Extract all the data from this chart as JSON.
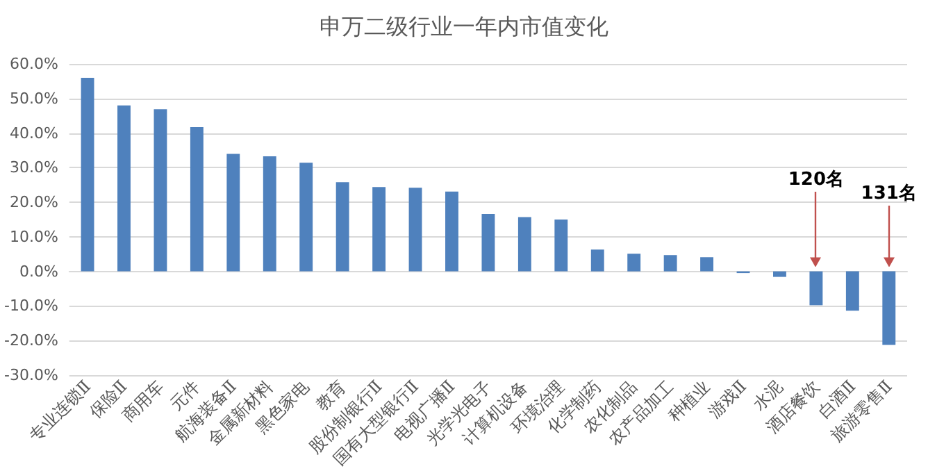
{
  "chart_data": {
    "type": "bar",
    "title": "申万二级行业一年内市值变化",
    "categories": [
      "专业连锁Ⅱ",
      "保险Ⅱ",
      "商用车",
      "元件",
      "航海装备Ⅱ",
      "金属新材料",
      "黑色家电",
      "教育",
      "股份制银行Ⅱ",
      "国有大型银行Ⅱ",
      "电视广播Ⅱ",
      "光学光电子",
      "计算机设备",
      "环境治理",
      "化学制药",
      "农化制品",
      "农产品加工",
      "种植业",
      "游戏Ⅱ",
      "水泥",
      "酒店餐饮",
      "白酒Ⅱ",
      "旅游零售Ⅱ"
    ],
    "values": [
      56.0,
      48.0,
      46.9,
      41.7,
      34.0,
      33.3,
      31.4,
      25.8,
      24.4,
      24.2,
      23.1,
      16.6,
      15.7,
      15.0,
      6.3,
      5.1,
      4.7,
      4.1,
      -0.5,
      -1.6,
      -9.8,
      -11.4,
      -21.3
    ],
    "color": "#4f81bd",
    "ylim": [
      -30,
      60
    ],
    "yticks": [
      {
        "value": -30,
        "label": "-30.0%"
      },
      {
        "value": -20,
        "label": "-20.0%"
      },
      {
        "value": -10,
        "label": "-10.0%"
      },
      {
        "value": 0,
        "label": "0.0%"
      },
      {
        "value": 10,
        "label": "10.0%"
      },
      {
        "value": 20,
        "label": "20.0%"
      },
      {
        "value": 30,
        "label": "30.0%"
      },
      {
        "value": 40,
        "label": "40.0%"
      },
      {
        "value": 50,
        "label": "50.0%"
      },
      {
        "value": 60,
        "label": "60.0%"
      }
    ],
    "grid": "y",
    "annotations": [
      {
        "text": "120名",
        "x": "酒店餐饮",
        "y": 0
      },
      {
        "text": "131名",
        "x": "旅游零售Ⅱ",
        "y": 0
      }
    ]
  }
}
